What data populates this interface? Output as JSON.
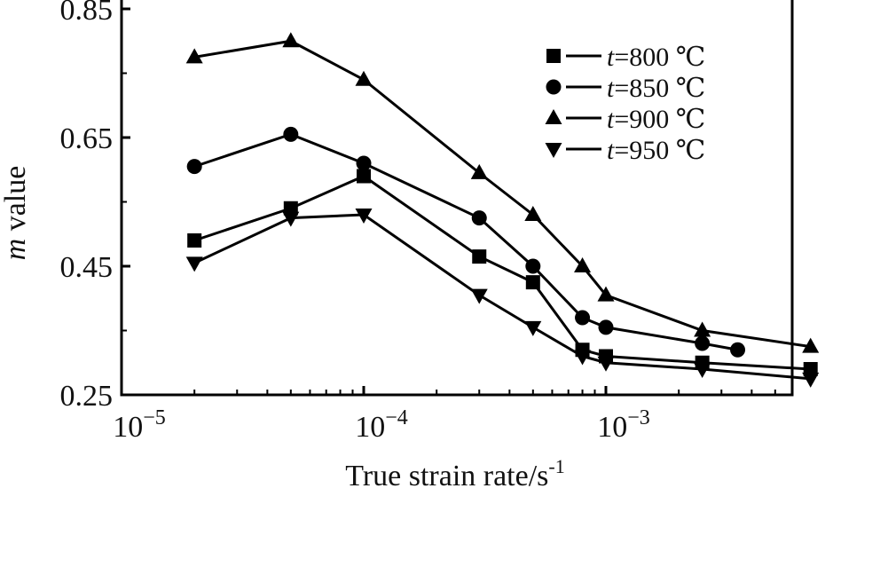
{
  "chart_data": {
    "type": "line",
    "title": "",
    "xlabel": "True strain rate/s",
    "xlabel_exponent": "-1",
    "ylabel_var": "m",
    "ylabel_rest": " value",
    "x_scale": "log",
    "xlim": [
      1e-05,
      0.007
    ],
    "ylim": [
      0.25,
      0.85
    ],
    "x_ticks": [
      {
        "value": 1e-05,
        "base": "10",
        "exp": "−5"
      },
      {
        "value": 0.0001,
        "base": "10",
        "exp": "−4"
      },
      {
        "value": 0.001,
        "base": "10",
        "exp": "−3"
      }
    ],
    "y_ticks": [
      {
        "value": 0.25,
        "label": "0.25"
      },
      {
        "value": 0.45,
        "label": "0.45"
      },
      {
        "value": 0.65,
        "label": "0.65"
      },
      {
        "value": 0.85,
        "label": "0.85"
      }
    ],
    "grid": false,
    "legend_position": "top-right",
    "series": [
      {
        "name": "t=800 ℃",
        "var": "t",
        "rest": "=800 ℃",
        "marker": "square",
        "x": [
          2e-05,
          5e-05,
          0.0001,
          0.0003,
          0.0005,
          0.0008,
          0.001,
          0.0025,
          0.007
        ],
        "y": [
          0.49,
          0.54,
          0.59,
          0.465,
          0.425,
          0.32,
          0.31,
          0.3,
          0.29
        ]
      },
      {
        "name": "t=850 ℃",
        "var": "t",
        "rest": "=850 ℃",
        "marker": "circle",
        "x": [
          2e-05,
          5e-05,
          0.0001,
          0.0003,
          0.0005,
          0.0008,
          0.001,
          0.0025,
          0.0035
        ],
        "y": [
          0.605,
          0.655,
          0.61,
          0.525,
          0.45,
          0.37,
          0.355,
          0.33,
          0.32
        ]
      },
      {
        "name": "t=900 ℃",
        "var": "t",
        "rest": "=900 ℃",
        "marker": "triangle-up",
        "x": [
          2e-05,
          5e-05,
          0.0001,
          0.0003,
          0.0005,
          0.0008,
          0.001,
          0.0025,
          0.007
        ],
        "y": [
          0.775,
          0.8,
          0.74,
          0.595,
          0.53,
          0.45,
          0.405,
          0.35,
          0.325
        ]
      },
      {
        "name": "t=950 ℃",
        "var": "t",
        "rest": "=950 ℃",
        "marker": "triangle-down",
        "x": [
          2e-05,
          5e-05,
          0.0001,
          0.0003,
          0.0005,
          0.0008,
          0.001,
          0.0025,
          0.007
        ],
        "y": [
          0.455,
          0.525,
          0.53,
          0.405,
          0.355,
          0.31,
          0.3,
          0.29,
          0.275
        ]
      }
    ]
  }
}
